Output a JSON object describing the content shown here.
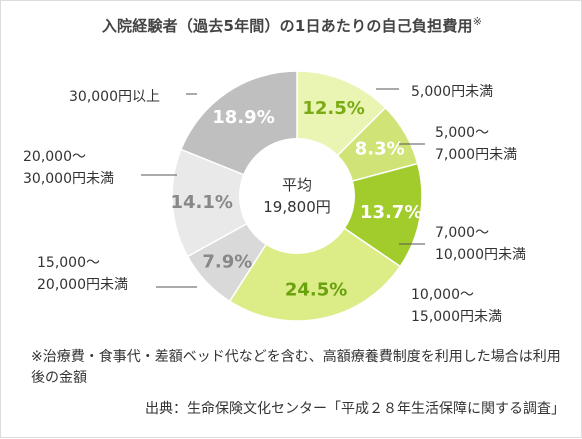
{
  "title": "入院経験者（過去5年間）の1日あたりの自己負担費用",
  "title_mark": "※",
  "chart_data": {
    "type": "pie",
    "title": "入院経験者（過去5年間）の1日あたりの自己負担費用",
    "center_label": [
      "平均",
      "19,800円"
    ],
    "slices": [
      {
        "label": [
          "5,000円未満"
        ],
        "value": 12.5,
        "display": "12.5%",
        "color": "#eaf4b3",
        "text_color": "#7aab12"
      },
      {
        "label": [
          "5,000〜",
          "7,000円未満"
        ],
        "value": 8.3,
        "display": "8.3%",
        "color": "#cfe376",
        "text_color": "#ffffff"
      },
      {
        "label": [
          "7,000〜",
          "10,000円未満"
        ],
        "value": 13.7,
        "display": "13.7%",
        "color": "#a2cc2c",
        "text_color": "#ffffff"
      },
      {
        "label": [
          "10,000〜",
          "15,000円未満"
        ],
        "value": 24.5,
        "display": "24.5%",
        "color": "#dcec87",
        "text_color": "#6aa10e"
      },
      {
        "label": [
          "15,000〜",
          "20,000円未満"
        ],
        "value": 7.9,
        "display": "7.9%",
        "color": "#d9d9d9",
        "text_color": "#888888"
      },
      {
        "label": [
          "20,000〜",
          "30,000円未満"
        ],
        "value": 14.1,
        "display": "14.1%",
        "color": "#e9e9e9",
        "text_color": "#888888"
      },
      {
        "label": [
          "30,000円以上"
        ],
        "value": 18.9,
        "display": "18.9%",
        "color": "#bfbfbf",
        "text_color": "#ffffff"
      }
    ]
  },
  "note": "※治療費・食事代・差額ベッド代などを含む、高額療養費制度を利用した場合は利用後の金額",
  "source": "出典：生命保険文化センター「平成２８年生活保障に関する調査」"
}
